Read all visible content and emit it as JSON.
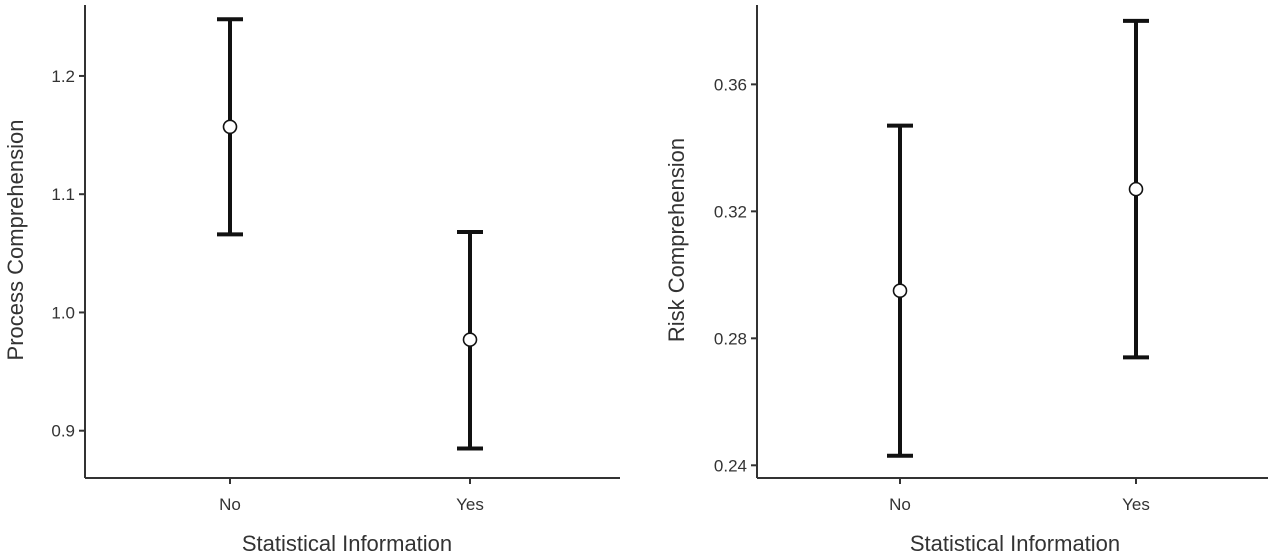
{
  "chart_data": [
    {
      "type": "scatter",
      "title": "",
      "xlabel": "Statistical Information",
      "ylabel": "Process Comprehension",
      "categories": [
        "No",
        "Yes"
      ],
      "values": [
        1.157,
        0.977
      ],
      "lower": [
        1.066,
        0.885
      ],
      "upper": [
        1.248,
        1.068
      ],
      "ylim": [
        0.86,
        1.26
      ],
      "yticks": [
        "0.9",
        "1.0",
        "1.1",
        "1.2"
      ],
      "grid": false,
      "legend": "none"
    },
    {
      "type": "scatter",
      "title": "",
      "xlabel": "Statistical Information",
      "ylabel": "Risk Comprehension",
      "categories": [
        "No",
        "Yes"
      ],
      "values": [
        0.295,
        0.327
      ],
      "lower": [
        0.243,
        0.274
      ],
      "upper": [
        0.347,
        0.38
      ],
      "ylim": [
        0.236,
        0.385
      ],
      "yticks": [
        "0.24",
        "0.28",
        "0.32",
        "0.36"
      ],
      "grid": false,
      "legend": "none"
    }
  ]
}
